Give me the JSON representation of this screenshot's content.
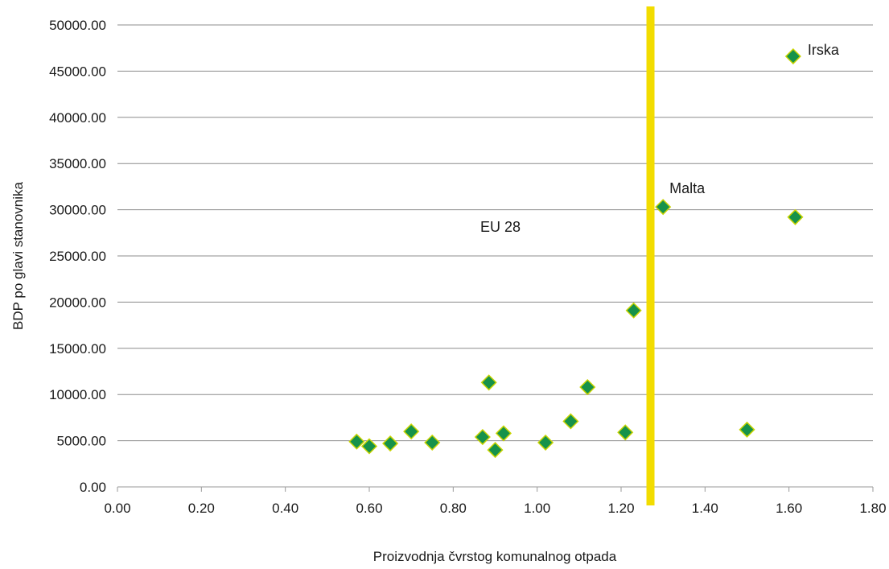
{
  "chart_data": {
    "type": "scatter",
    "title": "",
    "xlabel": "Proizvodnja čvrstog komunalnog otpada",
    "ylabel": "BDP po glavi stanovnika",
    "xlim": [
      0,
      1.8
    ],
    "ylim": [
      0,
      50000
    ],
    "x_ticks": [
      "0.00",
      "0.20",
      "0.40",
      "0.60",
      "0.80",
      "1.00",
      "1.20",
      "1.40",
      "1.60",
      "1.80"
    ],
    "y_ticks": [
      "0.00",
      "5000.00",
      "10000.00",
      "15000.00",
      "20000.00",
      "25000.00",
      "30000.00",
      "35000.00",
      "40000.00",
      "45000.00",
      "50000.00"
    ],
    "grid": "horizontal",
    "marker": "diamond",
    "marker_color": "#16924a",
    "marker_edge_color": "#c8d400",
    "reference_line": {
      "x": 1.27,
      "label": "EU 28",
      "color": "#f2dc00"
    },
    "points": [
      {
        "x": 0.57,
        "y": 4900
      },
      {
        "x": 0.6,
        "y": 4400
      },
      {
        "x": 0.65,
        "y": 4700
      },
      {
        "x": 0.7,
        "y": 6000
      },
      {
        "x": 0.75,
        "y": 4800
      },
      {
        "x": 0.87,
        "y": 5400
      },
      {
        "x": 0.885,
        "y": 11300
      },
      {
        "x": 0.9,
        "y": 4000
      },
      {
        "x": 0.92,
        "y": 5800
      },
      {
        "x": 1.02,
        "y": 4800
      },
      {
        "x": 1.08,
        "y": 7100
      },
      {
        "x": 1.12,
        "y": 10800
      },
      {
        "x": 1.21,
        "y": 5900
      },
      {
        "x": 1.23,
        "y": 19100
      },
      {
        "x": 1.3,
        "y": 30300,
        "label": "Malta"
      },
      {
        "x": 1.5,
        "y": 6200
      },
      {
        "x": 1.61,
        "y": 46600,
        "label": "Irska"
      },
      {
        "x": 1.615,
        "y": 29200
      }
    ]
  }
}
